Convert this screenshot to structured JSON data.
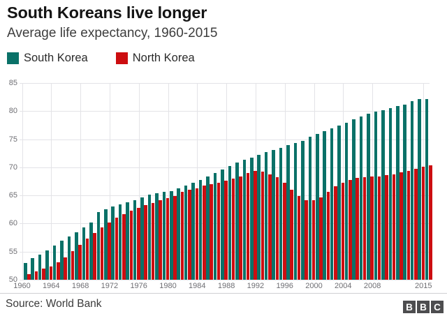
{
  "header": {
    "title": "South Koreans live longer",
    "subtitle": "Average life expectancy, 1960-2015"
  },
  "chart_data": {
    "type": "bar",
    "title": "South Koreans live longer",
    "subtitle": "Average life expectancy, 1960-2015",
    "categories": [
      1960,
      1961,
      1962,
      1963,
      1964,
      1965,
      1966,
      1967,
      1968,
      1969,
      1970,
      1971,
      1972,
      1973,
      1974,
      1975,
      1976,
      1977,
      1978,
      1979,
      1980,
      1981,
      1982,
      1983,
      1984,
      1985,
      1986,
      1987,
      1988,
      1989,
      1990,
      1991,
      1992,
      1993,
      1994,
      1995,
      1996,
      1997,
      1998,
      1999,
      2000,
      2001,
      2002,
      2003,
      2004,
      2005,
      2006,
      2007,
      2008,
      2009,
      2010,
      2011,
      2012,
      2013,
      2014,
      2015
    ],
    "series": [
      {
        "name": "South Korea",
        "color": "#0a7168",
        "values": [
          53.0,
          53.8,
          54.5,
          55.2,
          56.1,
          56.9,
          57.7,
          58.5,
          59.3,
          60.2,
          62.0,
          62.5,
          63.0,
          63.4,
          63.8,
          64.2,
          64.7,
          65.1,
          65.4,
          65.6,
          65.8,
          66.3,
          66.8,
          67.3,
          67.8,
          68.4,
          69.0,
          69.6,
          70.2,
          70.8,
          71.3,
          71.7,
          72.2,
          72.7,
          73.1,
          73.4,
          73.9,
          74.3,
          74.7,
          75.4,
          75.9,
          76.4,
          76.9,
          77.4,
          77.9,
          78.5,
          79.0,
          79.5,
          79.9,
          80.2,
          80.5,
          80.9,
          81.2,
          81.8,
          82.2,
          82.2
        ]
      },
      {
        "name": "North Korea",
        "color": "#cc0d10",
        "values": [
          51.0,
          51.5,
          52.0,
          52.4,
          53.1,
          54.0,
          55.1,
          56.2,
          57.3,
          58.3,
          59.3,
          60.2,
          61.0,
          61.7,
          62.3,
          62.8,
          63.3,
          63.7,
          64.1,
          64.5,
          64.9,
          65.6,
          66.0,
          66.3,
          66.7,
          67.0,
          67.3,
          67.6,
          68.0,
          68.4,
          69.0,
          69.4,
          69.2,
          68.8,
          68.2,
          67.2,
          66.0,
          64.9,
          64.2,
          64.1,
          64.7,
          65.7,
          66.6,
          67.2,
          67.7,
          68.1,
          68.3,
          68.4,
          68.4,
          68.6,
          68.8,
          69.1,
          69.4,
          69.7,
          70.1,
          70.4
        ]
      }
    ],
    "xlabel": "",
    "ylabel": "",
    "ylim": [
      50,
      85
    ],
    "yticks": [
      50,
      55,
      60,
      65,
      70,
      75,
      80,
      85
    ],
    "x_tick_labels": [
      "1960",
      "1964",
      "1968",
      "1972",
      "1976",
      "1980",
      "1984",
      "1988",
      "1992",
      "1996",
      "2000",
      "2004",
      "2008",
      "2015"
    ],
    "grid": true,
    "legend_position": "top"
  },
  "footer": {
    "source": "Source: World Bank",
    "logo_letters": [
      "B",
      "B",
      "C"
    ]
  }
}
